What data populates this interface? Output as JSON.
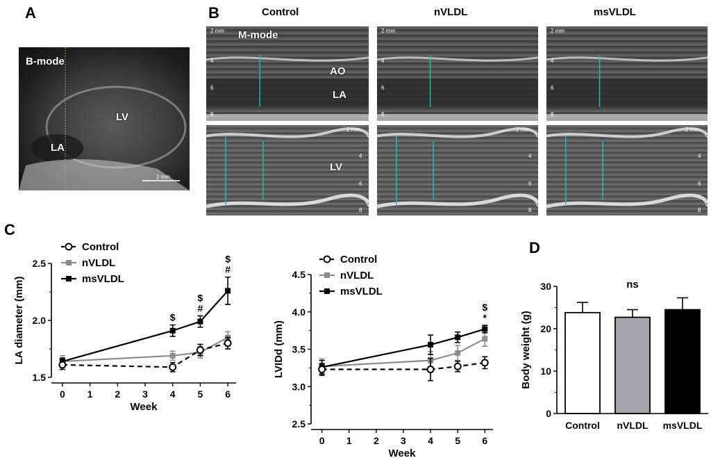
{
  "panels": {
    "A": "A",
    "B": "B",
    "C": "C",
    "D": "D"
  },
  "panelA": {
    "mode_label": "B-mode",
    "labels": {
      "lv": "LV",
      "la": "LA"
    },
    "scale_label": "2 mm"
  },
  "panelB": {
    "columns": [
      "Control",
      "nVLDL",
      "msVLDL"
    ],
    "mode_label": "M-mode",
    "labels": {
      "ao": "AO",
      "la": "LA",
      "lv": "LV"
    },
    "scale_label": "2 mm",
    "depth_ticks": [
      "4",
      "6",
      "8"
    ]
  },
  "colors": {
    "control": "#000000",
    "nvldl": "#8c8c8c",
    "msvldl": "#000000",
    "echo_measure": "#1fb8c4"
  },
  "chart_data": [
    {
      "type": "line",
      "ylabel": "LA diameter (mm)",
      "xlabel": "Week",
      "x_ticks": [
        "0",
        "1",
        "2",
        "3",
        "4",
        "5",
        "6"
      ],
      "y_ticks": [
        "1.5",
        "2.0",
        "2.5"
      ],
      "ylim": [
        1.5,
        2.5
      ],
      "xlim": [
        -0.4,
        6.3
      ],
      "legend": [
        "Control",
        "nVLDL",
        "msVLDL"
      ],
      "series": [
        {
          "name": "Control",
          "style": "dashed",
          "marker": "open-circle",
          "x": [
            0,
            4,
            5,
            6
          ],
          "values": [
            1.61,
            1.59,
            1.74,
            1.8
          ],
          "err": [
            0.04,
            0.04,
            0.05,
            0.05
          ]
        },
        {
          "name": "nVLDL",
          "style": "solid",
          "marker": "square",
          "x": [
            0,
            4,
            5,
            6
          ],
          "values": [
            1.64,
            1.69,
            1.72,
            1.85
          ],
          "err": [
            0.05,
            0.04,
            0.05,
            0.05
          ]
        },
        {
          "name": "msVLDL",
          "style": "solid",
          "marker": "square",
          "x": [
            0,
            4,
            5,
            6
          ],
          "values": [
            1.64,
            1.91,
            1.99,
            2.26
          ],
          "err": [
            0.03,
            0.05,
            0.05,
            0.12
          ]
        }
      ],
      "annotations": [
        {
          "x": 4,
          "lines": [
            "$"
          ]
        },
        {
          "x": 5,
          "lines": [
            "$",
            "#"
          ]
        },
        {
          "x": 6,
          "lines": [
            "$",
            "#"
          ]
        }
      ]
    },
    {
      "type": "line",
      "ylabel": "LVIDd (mm)",
      "xlabel": "Week",
      "x_ticks": [
        "0",
        "1",
        "2",
        "3",
        "4",
        "5",
        "6"
      ],
      "y_ticks": [
        "2.5",
        "3.0",
        "3.5",
        "4.0",
        "4.5"
      ],
      "ylim": [
        2.5,
        4.5
      ],
      "xlim": [
        -0.4,
        6.3
      ],
      "legend": [
        "Control",
        "nVLDL",
        "msVLDL"
      ],
      "series": [
        {
          "name": "Control",
          "style": "dashed",
          "marker": "open-circle",
          "x": [
            0,
            4,
            5,
            6
          ],
          "values": [
            3.23,
            3.23,
            3.27,
            3.32
          ],
          "err": [
            0.08,
            0.15,
            0.07,
            0.08
          ]
        },
        {
          "name": "nVLDL",
          "style": "solid",
          "marker": "square",
          "x": [
            0,
            4,
            5,
            6
          ],
          "values": [
            3.27,
            3.35,
            3.45,
            3.64
          ],
          "err": [
            0.1,
            0.12,
            0.1,
            0.1
          ]
        },
        {
          "name": "msVLDL",
          "style": "solid",
          "marker": "square",
          "x": [
            0,
            4,
            5,
            6
          ],
          "values": [
            3.26,
            3.56,
            3.66,
            3.77
          ],
          "err": [
            0.09,
            0.13,
            0.07,
            0.05
          ]
        }
      ],
      "annotations": [
        {
          "x": 6,
          "lines": [
            "$",
            "*"
          ]
        }
      ]
    },
    {
      "type": "bar",
      "ylabel": "Body weight (g)",
      "categories": [
        "Control",
        "nVLDL",
        "msVLDL"
      ],
      "values": [
        23.8,
        22.7,
        24.5
      ],
      "err": [
        2.4,
        1.8,
        2.8
      ],
      "fills": [
        "#ffffff",
        "#a6a6aa",
        "#000000"
      ],
      "y_ticks": [
        "0",
        "10",
        "20",
        "30"
      ],
      "ylim": [
        0,
        30
      ],
      "annotation": "ns"
    }
  ]
}
